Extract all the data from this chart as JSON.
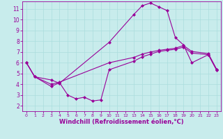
{
  "xlabel": "Windchill (Refroidissement éolien,°C)",
  "background_color": "#c8ecec",
  "line_color": "#990099",
  "xlim": [
    -0.5,
    23.5
  ],
  "ylim": [
    1.5,
    11.7
  ],
  "xticks": [
    0,
    1,
    2,
    3,
    4,
    5,
    6,
    7,
    8,
    9,
    10,
    11,
    12,
    13,
    14,
    15,
    16,
    17,
    18,
    19,
    20,
    21,
    22,
    23
  ],
  "yticks": [
    2,
    3,
    4,
    5,
    6,
    7,
    8,
    9,
    10,
    11
  ],
  "line1_x": [
    0,
    1,
    3,
    4,
    10,
    13,
    14,
    15,
    16,
    17,
    18,
    19,
    20,
    22,
    23
  ],
  "line1_y": [
    6.0,
    4.7,
    4.4,
    4.1,
    7.9,
    10.5,
    11.3,
    11.55,
    11.2,
    10.85,
    8.35,
    7.65,
    6.0,
    6.75,
    5.3
  ],
  "line2_x": [
    0,
    1,
    3,
    4,
    10,
    13,
    14,
    15,
    16,
    17,
    18,
    19,
    20,
    22,
    23
  ],
  "line2_y": [
    6.0,
    4.7,
    4.0,
    4.2,
    6.0,
    6.5,
    6.8,
    7.0,
    7.15,
    7.25,
    7.35,
    7.6,
    7.05,
    6.85,
    5.4
  ],
  "line3_x": [
    0,
    1,
    3,
    4,
    5,
    6,
    7,
    8,
    9,
    10,
    13,
    14,
    15,
    16,
    17,
    18,
    19,
    20,
    22,
    23
  ],
  "line3_y": [
    6.0,
    4.7,
    3.8,
    4.15,
    3.0,
    2.65,
    2.8,
    2.45,
    2.55,
    5.35,
    6.15,
    6.55,
    6.8,
    7.05,
    7.15,
    7.25,
    7.45,
    6.9,
    6.75,
    5.35
  ],
  "grid_color": "#aadddd",
  "marker": "D",
  "markersize": 2.0,
  "linewidth": 0.8,
  "xlabel_fontsize": 6.0,
  "tick_fontsize_x": 4.5,
  "tick_fontsize_y": 5.5
}
